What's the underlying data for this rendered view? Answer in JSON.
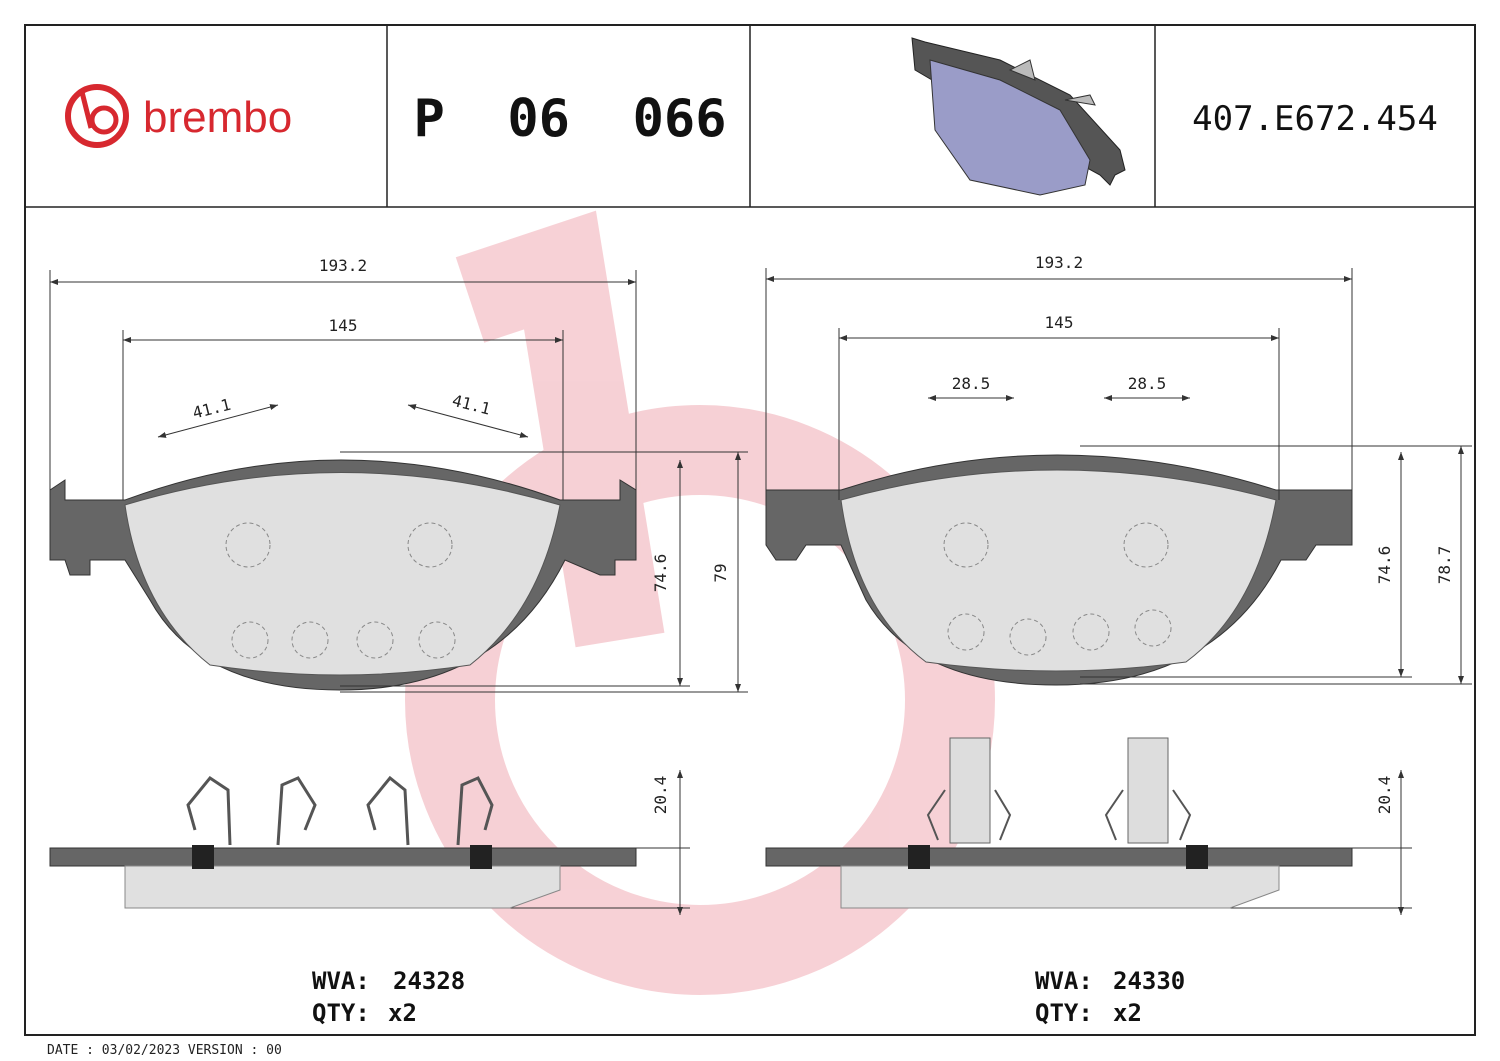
{
  "header": {
    "brand": "brembo",
    "part_number": "P  06  066",
    "code": "407.E672.454"
  },
  "drawings": [
    {
      "dimensions": {
        "width": "193.2",
        "inner_width": "145",
        "feature_left": "41.1",
        "feature_right": "41.1",
        "height": "74.6",
        "height_total": "79",
        "thickness": "20.4"
      },
      "wva_label": "WVA:",
      "wva": "24328",
      "qty_label": "QTY:",
      "qty": "x2"
    },
    {
      "dimensions": {
        "width": "193.2",
        "inner_width": "145",
        "feature_left": "28.5",
        "feature_right": "28.5",
        "height": "74.6",
        "height_total": "78.7",
        "thickness": "20.4"
      },
      "wva_label": "WVA:",
      "wva": "24330",
      "qty_label": "QTY:",
      "qty": "x2"
    }
  ],
  "footer": "DATE : 03/02/2023 VERSION : 00"
}
